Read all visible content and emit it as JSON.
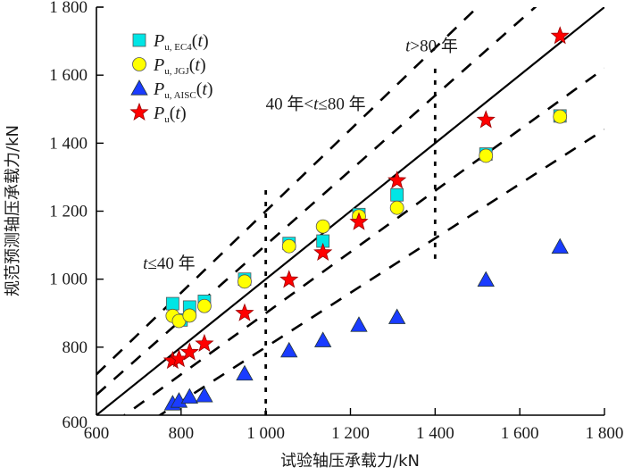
{
  "chart_data": {
    "type": "scatter",
    "title": "",
    "xlabel": "试验轴压承载力/kN",
    "ylabel": "规范预测轴压承载力/kN",
    "xlim": [
      600,
      1800
    ],
    "ylim": [
      600,
      1800
    ],
    "xticks": [
      600,
      800,
      1000,
      1200,
      1400,
      1600,
      1800
    ],
    "yticks": [
      600,
      800,
      1000,
      1200,
      1400,
      1600,
      1800
    ],
    "xtick_labels": [
      "600",
      "800",
      "1 000",
      "1 200",
      "1 400",
      "1 600",
      "1 800"
    ],
    "ytick_labels": [
      "600",
      "800",
      "1 000",
      "1 200",
      "1 400",
      "1 600",
      "1 800"
    ],
    "grid": false,
    "legend_position": "top-left",
    "series": [
      {
        "name": "P_u,EC4(t)",
        "label_main": "P",
        "label_sub": "u, EC4",
        "label_tail": "(t)",
        "marker": "square",
        "color": "#00e5e5",
        "x": [
          780,
          800,
          820,
          855,
          950,
          1055,
          1135,
          1220,
          1310,
          1520,
          1695
        ],
        "y": [
          928,
          880,
          918,
          935,
          1000,
          1105,
          1112,
          1190,
          1248,
          1368,
          1480
        ]
      },
      {
        "name": "P_u,JGJ(t)",
        "label_main": "P",
        "label_sub": "u, JGJ",
        "label_tail": "(t)",
        "marker": "circle",
        "color": "#ffff00",
        "x": [
          780,
          795,
          820,
          855,
          950,
          1055,
          1135,
          1220,
          1310,
          1520,
          1695
        ],
        "y": [
          892,
          877,
          893,
          921,
          993,
          1097,
          1155,
          1185,
          1210,
          1363,
          1478
        ]
      },
      {
        "name": "P_u,AISC(t)",
        "label_main": "P",
        "label_sub": "u, AISC",
        "label_tail": "(t)",
        "marker": "triangle",
        "color": "#1a3cff",
        "x": [
          780,
          795,
          820,
          855,
          950,
          1055,
          1135,
          1220,
          1310,
          1520,
          1695
        ],
        "y": [
          634,
          642,
          654,
          658,
          722,
          790,
          820,
          865,
          888,
          998,
          1095
        ]
      },
      {
        "name": "P_u(t)",
        "label_main": "P",
        "label_sub": "u",
        "label_tail": "(t)",
        "marker": "star",
        "color": "#ff0000",
        "x": [
          780,
          795,
          820,
          855,
          950,
          1055,
          1135,
          1220,
          1310,
          1520,
          1695
        ],
        "y": [
          760,
          765,
          785,
          810,
          900,
          998,
          1078,
          1168,
          1290,
          1468,
          1715
        ]
      }
    ],
    "reference_lines": [
      {
        "name": "y = x",
        "slope": 1.0,
        "style": "solid"
      },
      {
        "name": "+20%",
        "slope": 1.2,
        "style": "dashed"
      },
      {
        "name": "+10%",
        "slope": 1.1,
        "style": "dashed"
      },
      {
        "name": "-10%",
        "slope": 0.9,
        "style": "dashed"
      },
      {
        "name": "-20%",
        "slope": 0.8,
        "style": "dashed"
      }
    ],
    "region_dividers": [
      {
        "x": 1000,
        "y_range": [
          600,
          1270
        ],
        "style": "dotted"
      },
      {
        "x": 1400,
        "y_range": [
          1060,
          1640
        ],
        "style": "dotted"
      }
    ],
    "annotations": [
      {
        "text": "t≤40 年",
        "italic_part": "t",
        "rest": "≤40 年",
        "x": 710,
        "y": 1030
      },
      {
        "text": "40 年<t≤80 年",
        "before": "40 年<",
        "italic_part": "t",
        "after": "≤80 年",
        "x": 1000,
        "y": 1500
      },
      {
        "text": "t>80 年",
        "italic_part": "t",
        "rest": ">80 年",
        "x": 1330,
        "y": 1670
      }
    ]
  }
}
